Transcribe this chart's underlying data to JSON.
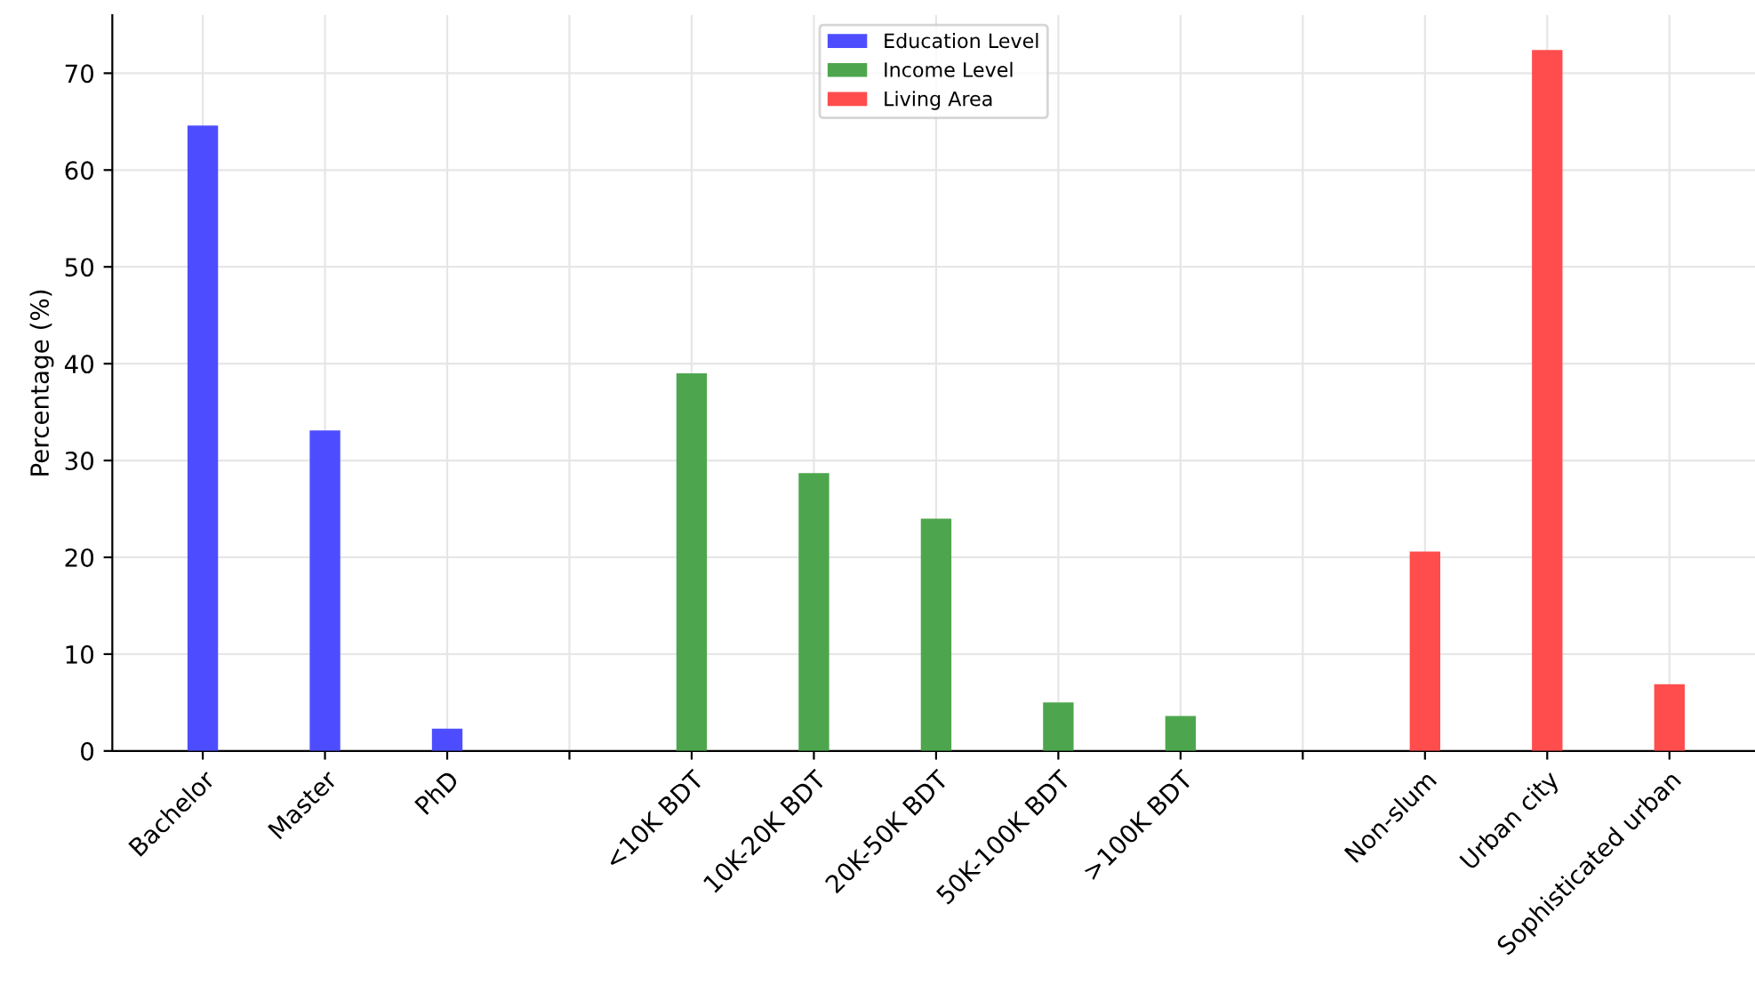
{
  "chart_data": {
    "type": "bar",
    "ylabel": "Percentage (%)",
    "categories": [
      "Bachelor",
      "Master",
      "PhD",
      null,
      "<10K BDT",
      "10K-20K BDT",
      "20K-50K BDT",
      "50K-100K BDT",
      ">100K BDT",
      null,
      "Non-slum",
      "Urban city",
      "Sophisticated urban"
    ],
    "series": [
      {
        "name": "Education Level",
        "color": "#4d4dff",
        "values": [
          64.6,
          33.1,
          2.3,
          null,
          null,
          null,
          null,
          null,
          null,
          null,
          null,
          null,
          null
        ]
      },
      {
        "name": "Income Level",
        "color": "#4da64d",
        "values": [
          null,
          null,
          null,
          null,
          39.0,
          28.7,
          24.0,
          5.0,
          3.6,
          null,
          null,
          null,
          null
        ]
      },
      {
        "name": "Living Area",
        "color": "#ff4d4d",
        "values": [
          null,
          null,
          null,
          null,
          null,
          null,
          null,
          null,
          null,
          null,
          20.6,
          72.4,
          6.9
        ]
      }
    ],
    "ylim": [
      0,
      76
    ],
    "yticks": [
      0,
      10,
      20,
      30,
      40,
      50,
      60,
      70
    ],
    "grid": true,
    "legend": "top"
  }
}
